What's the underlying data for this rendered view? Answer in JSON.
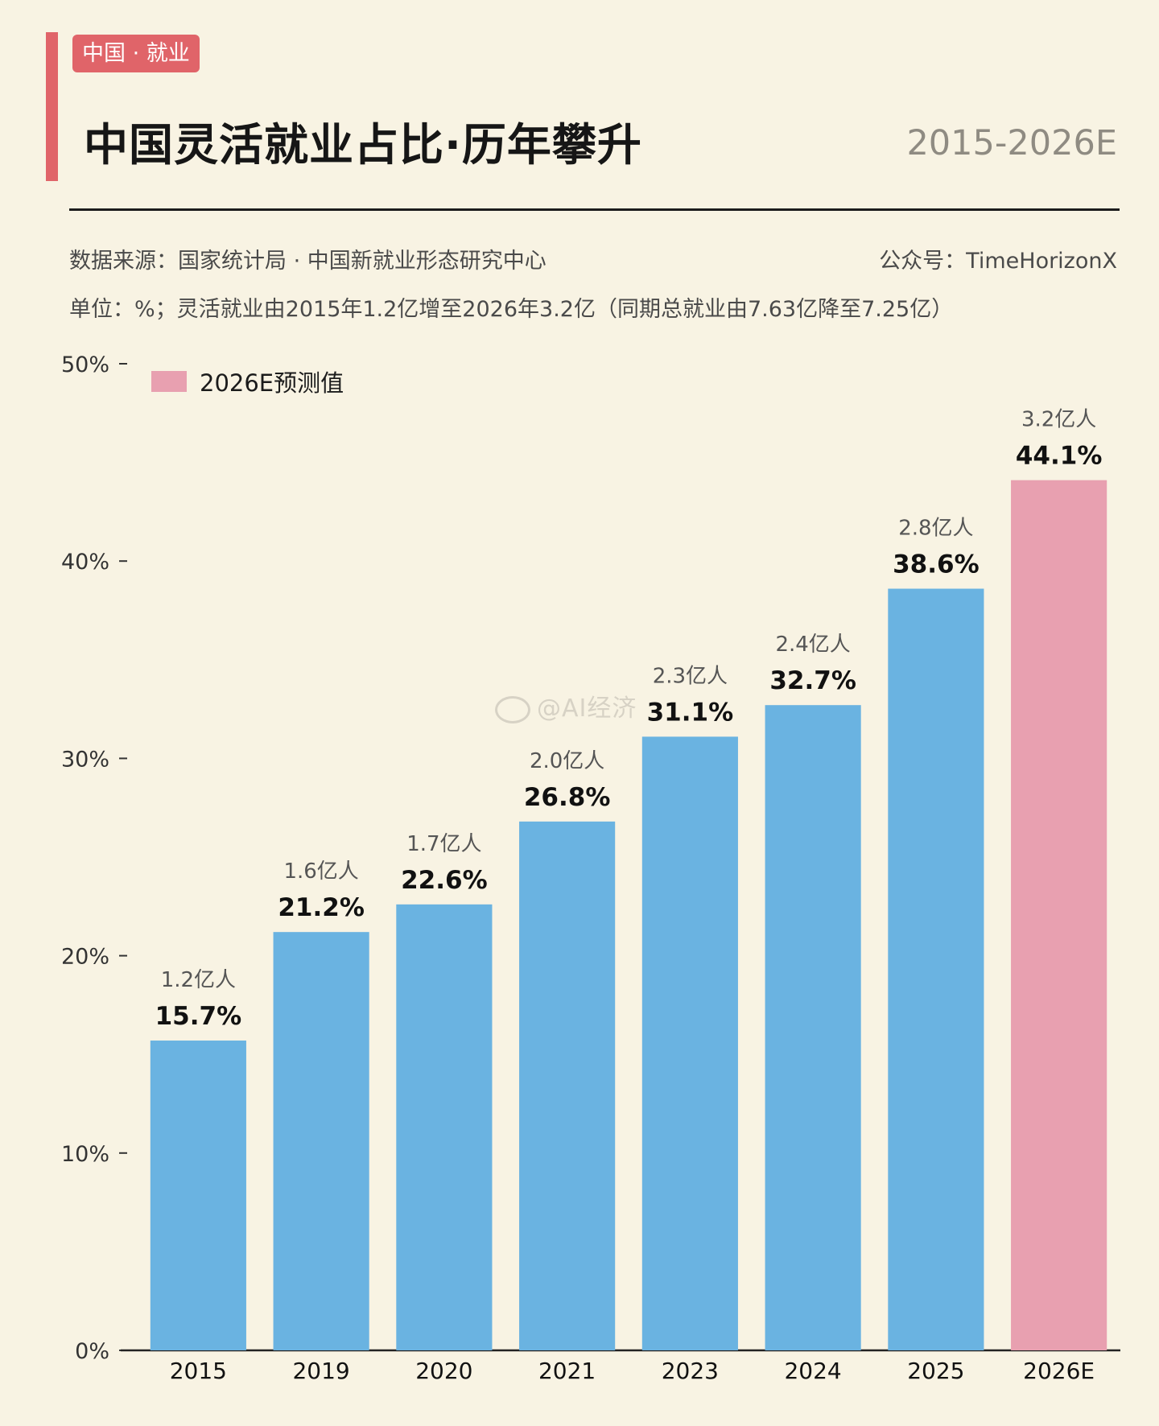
{
  "header": {
    "tag": "中国 · 就业",
    "title": "中国灵活就业占比·历年攀升",
    "year_range": "2015-2026E"
  },
  "meta": {
    "source": "数据来源：国家统计局 · 中国新就业形态研究中心",
    "account": "公众号：TimeHorizonX",
    "unit_note": "单位：%；灵活就业由2015年1.2亿增至2026年3.2亿（同期总就业由7.63亿降至7.25亿）"
  },
  "legend": {
    "forecast_label": "2026E预测值"
  },
  "watermark": {
    "text": "@AI经济"
  },
  "colors": {
    "actual": "#6ab3e1",
    "forecast": "#e8a0b0",
    "accent": "#e06469",
    "background": "#f8f3e3"
  },
  "chart_data": {
    "type": "bar",
    "categories": [
      "2015",
      "2019",
      "2020",
      "2021",
      "2023",
      "2024",
      "2025",
      "2026E"
    ],
    "values": [
      15.7,
      21.2,
      22.6,
      26.8,
      31.1,
      32.7,
      38.6,
      44.1
    ],
    "value_labels": [
      "15.7%",
      "21.2%",
      "22.6%",
      "26.8%",
      "31.1%",
      "32.7%",
      "38.6%",
      "44.1%"
    ],
    "people_labels": [
      "1.2亿人",
      "1.6亿人",
      "1.7亿人",
      "2.0亿人",
      "2.3亿人",
      "2.4亿人",
      "2.8亿人",
      "3.2亿人"
    ],
    "forecast": [
      false,
      false,
      false,
      false,
      false,
      false,
      false,
      true
    ],
    "ylim": [
      0,
      50
    ],
    "yticks": [
      0,
      10,
      20,
      30,
      40,
      50
    ],
    "ytick_labels": [
      "0%",
      "10%",
      "20%",
      "30%",
      "40%",
      "50%"
    ],
    "grid": false,
    "legend_position": "top-left"
  }
}
